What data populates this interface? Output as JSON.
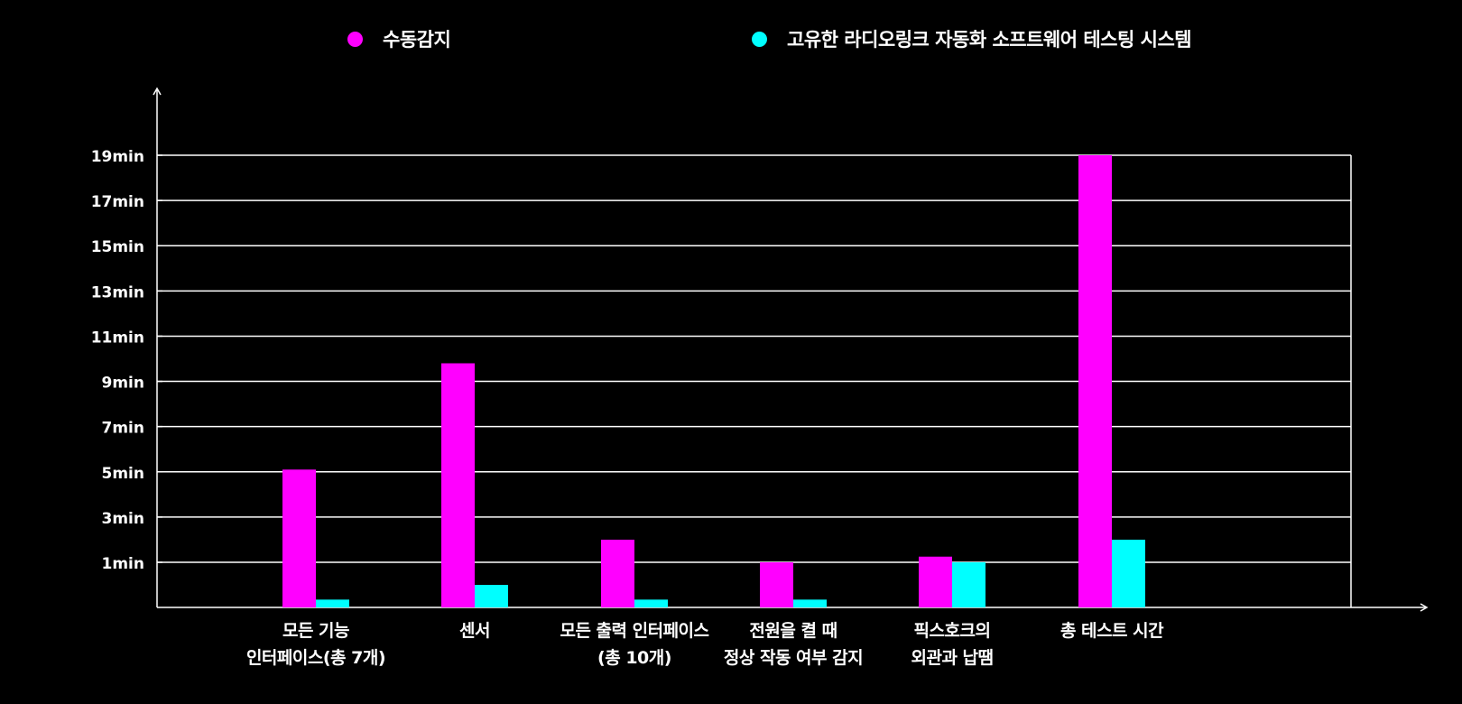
{
  "colors": {
    "background": "#000000",
    "grid": "#ffffff",
    "series_manual": "#ff00ff",
    "series_auto": "#00ffff",
    "text": "#ffffff"
  },
  "legend": [
    {
      "label": "수동감지",
      "color": "#ff00ff"
    },
    {
      "label": "고유한 라디오링크 자동화 소프트웨어 테스팅 시스템",
      "color": "#00ffff"
    }
  ],
  "chart_data": {
    "type": "bar",
    "title": "",
    "xlabel": "",
    "ylabel": "",
    "ylim": [
      -1,
      19
    ],
    "yticks": [
      1,
      3,
      5,
      7,
      9,
      11,
      13,
      15,
      17,
      19
    ],
    "ytick_labels": [
      "1min",
      "3min",
      "5min",
      "7min",
      "9min",
      "11min",
      "13min",
      "15min",
      "17min",
      "19min"
    ],
    "grid": true,
    "legend_position": "top",
    "categories": [
      [
        "모든 기능",
        "인터페이스(총 7개)"
      ],
      [
        "센서"
      ],
      [
        "모든 출력 인터페이스",
        "(총 10개)"
      ],
      [
        "전원을 켤 때",
        "정상 작동 여부 감지"
      ],
      [
        "픽스호크의",
        "외관과 납땜"
      ],
      [
        "총 테스트 시간"
      ]
    ],
    "series": [
      {
        "name": "수동감지",
        "color": "#ff00ff",
        "values": [
          5.1,
          9.8,
          2.0,
          1.0,
          1.25,
          19.0
        ]
      },
      {
        "name": "고유한 라디오링크 자동화 소프트웨어 테스팅 시스템",
        "color": "#00ffff",
        "values": [
          -0.65,
          0.0,
          -0.65,
          -0.65,
          1.0,
          2.0
        ]
      }
    ]
  }
}
